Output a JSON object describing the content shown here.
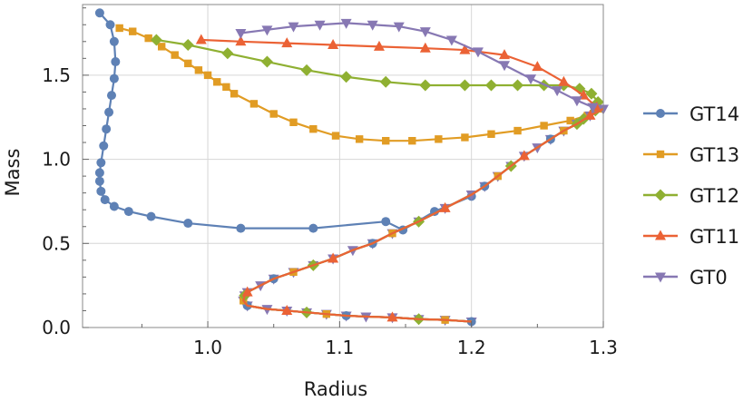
{
  "chart_data": {
    "type": "scatter",
    "title": "",
    "xlabel": "Radius",
    "ylabel": "Mass",
    "xlim": [
      0.905,
      1.3
    ],
    "ylim": [
      0.0,
      1.92
    ],
    "xticks": [
      1.0,
      1.1,
      1.2,
      1.3
    ],
    "yticks": [
      0.0,
      0.5,
      1.0,
      1.5
    ],
    "xtick_labels": [
      "1.0",
      "1.1",
      "1.2",
      "1.3"
    ],
    "ytick_labels": [
      "0.0",
      "0.5",
      "1.0",
      "1.5"
    ],
    "grid": true,
    "legend_position": "right",
    "series": [
      {
        "name": "GT14",
        "color": "#5E81B5",
        "marker": "circle",
        "x": [
          0.918,
          0.926,
          0.929,
          0.93,
          0.929,
          0.927,
          0.925,
          0.923,
          0.921,
          0.919,
          0.918,
          0.918,
          0.919,
          0.922,
          0.929,
          0.94,
          0.957,
          0.985,
          1.025,
          1.08,
          1.135,
          1.148,
          1.172,
          1.2
        ],
        "y": [
          1.87,
          1.8,
          1.7,
          1.58,
          1.48,
          1.38,
          1.28,
          1.18,
          1.08,
          0.98,
          0.92,
          0.87,
          0.81,
          0.76,
          0.72,
          0.69,
          0.66,
          0.62,
          0.59,
          0.59,
          0.63,
          0.58,
          0.69,
          0.78
        ]
      },
      {
        "name": "GT13",
        "color": "#E19C24",
        "marker": "square",
        "x": [
          0.933,
          0.943,
          0.955,
          0.965,
          0.975,
          0.985,
          0.993,
          1.0,
          1.007,
          1.014,
          1.02,
          1.035,
          1.05,
          1.065,
          1.08,
          1.097,
          1.115,
          1.135,
          1.155,
          1.175,
          1.195,
          1.215,
          1.235,
          1.255,
          1.275,
          1.288,
          1.297
        ],
        "y": [
          1.78,
          1.76,
          1.72,
          1.67,
          1.62,
          1.57,
          1.53,
          1.5,
          1.46,
          1.43,
          1.39,
          1.33,
          1.27,
          1.22,
          1.18,
          1.14,
          1.12,
          1.11,
          1.11,
          1.12,
          1.13,
          1.15,
          1.17,
          1.2,
          1.23,
          1.26,
          1.3
        ]
      },
      {
        "name": "GT12",
        "color": "#8FB032",
        "marker": "diamond",
        "x": [
          0.961,
          0.985,
          1.015,
          1.045,
          1.075,
          1.105,
          1.135,
          1.165,
          1.195,
          1.215,
          1.235,
          1.255,
          1.27,
          1.282,
          1.291,
          1.296,
          1.294,
          1.285
        ],
        "y": [
          1.71,
          1.68,
          1.63,
          1.58,
          1.53,
          1.49,
          1.46,
          1.44,
          1.44,
          1.44,
          1.44,
          1.44,
          1.44,
          1.42,
          1.39,
          1.34,
          1.29,
          1.24
        ]
      },
      {
        "name": "GT11",
        "color": "#EB6235",
        "marker": "triangle-up",
        "x": [
          0.995,
          1.025,
          1.06,
          1.095,
          1.13,
          1.165,
          1.195,
          1.225,
          1.25,
          1.27,
          1.285,
          1.295
        ],
        "y": [
          1.71,
          1.7,
          1.69,
          1.68,
          1.67,
          1.66,
          1.65,
          1.62,
          1.55,
          1.46,
          1.38,
          1.31
        ]
      },
      {
        "name": "GT0",
        "color": "#8778B3",
        "marker": "triangle-down",
        "x": [
          1.025,
          1.045,
          1.065,
          1.085,
          1.105,
          1.125,
          1.145,
          1.165,
          1.185,
          1.205,
          1.225,
          1.245,
          1.265,
          1.28,
          1.292
        ],
        "y": [
          1.75,
          1.77,
          1.79,
          1.8,
          1.81,
          1.8,
          1.79,
          1.76,
          1.71,
          1.64,
          1.56,
          1.48,
          1.41,
          1.35,
          1.31
        ]
      }
    ],
    "shared_branch": {
      "x": [
        1.3,
        1.29,
        1.28,
        1.27,
        1.26,
        1.25,
        1.24,
        1.23,
        1.22,
        1.21,
        1.2,
        1.18,
        1.16,
        1.14,
        1.125,
        1.11,
        1.095,
        1.08,
        1.065,
        1.05,
        1.04,
        1.03,
        1.028,
        1.027,
        1.03,
        1.045,
        1.06,
        1.075,
        1.09,
        1.105,
        1.12,
        1.14,
        1.16,
        1.18,
        1.2
      ],
      "y": [
        1.3,
        1.26,
        1.21,
        1.17,
        1.12,
        1.07,
        1.02,
        0.96,
        0.9,
        0.84,
        0.79,
        0.71,
        0.63,
        0.56,
        0.5,
        0.46,
        0.41,
        0.37,
        0.33,
        0.29,
        0.25,
        0.21,
        0.19,
        0.16,
        0.13,
        0.11,
        0.1,
        0.09,
        0.08,
        0.07,
        0.065,
        0.06,
        0.05,
        0.045,
        0.035
      ]
    }
  }
}
